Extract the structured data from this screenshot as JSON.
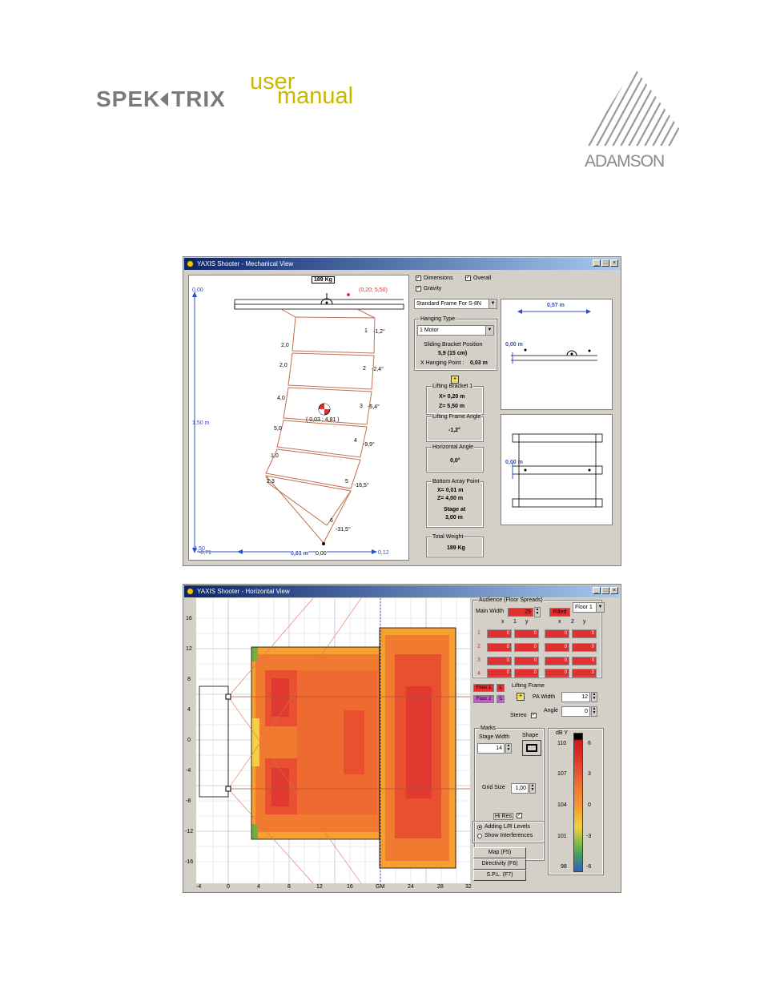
{
  "brand": {
    "word_left": "SPEK",
    "word_right": "TRIX",
    "user": "user",
    "manual": "manual",
    "company": "ADAMSON"
  },
  "mech": {
    "title": "YAXIS Shooter - Mechanical View",
    "weight_box": "189 Kg",
    "red_coord": "(0,20; 5,50)",
    "y_top": "0,00",
    "y_mid": "1,50 m",
    "y_bot": "-1,50",
    "x_left": "-0,71",
    "x_mid": "0,83 m",
    "x_right": "0,12",
    "x_zero": "0,00",
    "cog": "( 0,03 ; 4,81 )",
    "gaps": [
      "2,0",
      "2,0",
      "4,0",
      "5,0",
      "1,0",
      "2,3"
    ],
    "box_nums": [
      "1",
      "2",
      "3",
      "4",
      "5",
      "6"
    ],
    "box_angles": [
      "-1,2°",
      "-2,4°",
      "-5,4°",
      "-9,9°",
      "-16,5°",
      "-31,5°"
    ],
    "chk_dimensions": "Dimensions",
    "chk_overall": "Overall",
    "chk_gravity": "Gravity",
    "frame_select": "Standard Frame For S-8N",
    "hanging_type_title": "Hanging Type",
    "hanging_select": "1 Motor",
    "sliding_title": "Sliding Bracket Position",
    "sliding_value": "5,9  (15 cm)",
    "xhang_label": "X Hanging Point :",
    "xhang_value": "0,03 m",
    "lift_bracket_title": "Lifting Bracket 1",
    "lift_x": "X= 0,20 m",
    "lift_z": "Z= 5,50 m",
    "lift_angle_title": "Lifting Frame Angle",
    "lift_angle": "-1,2°",
    "horiz_angle_title": "Horizontal Angle",
    "horiz_angle": "0,0°",
    "bottom_title": "Bottom Array Point",
    "bottom_x": "X= 0,01 m",
    "bottom_z": "Z= 4,00 m",
    "stage_at": "Stage at",
    "stage_val": "3,00 m",
    "total_weight_title": "Total Weight",
    "total_weight": "189 Kg",
    "top_view_dim": "0,57 m",
    "top_view_left": "0,00 m",
    "plan_view_left": "0,00 m"
  },
  "horiz": {
    "title": "YAXIS Shooter - Horizontal View",
    "y_ticks": [
      "16",
      "12",
      "8",
      "4",
      "0",
      "-4",
      "-8",
      "-12",
      "-16"
    ],
    "x_ticks": [
      "-4",
      "0",
      "4",
      "8",
      "12",
      "16",
      "GM",
      "24",
      "28",
      "32"
    ],
    "audience_title": "Audience (Floor Spreads)",
    "main_width_label": "Main Width",
    "main_width_value": "25",
    "filled_btn": "Filled",
    "floor_select": "Floor 1",
    "col_heads": [
      "x",
      "1",
      "y",
      "x",
      "2",
      "y"
    ],
    "row_nums": [
      "1",
      "2",
      "3",
      "4"
    ],
    "cells": [
      [
        "0",
        "0",
        "0",
        "0"
      ],
      [
        "0",
        "0",
        "0",
        "0"
      ],
      [
        "0",
        "0",
        "0",
        "0"
      ],
      [
        "0",
        "0",
        "0",
        "0"
      ]
    ],
    "floor1": "Floor 1",
    "floor2": "Floor 2",
    "lr_l": "L",
    "lr_s": "S",
    "lifting_frame": "Lifting Frame",
    "pa_width_label": "PA Width",
    "pa_width": "12",
    "stereo": "Stereo",
    "angle_label": "Angle",
    "angle_value": "0",
    "marks_title": "Marks",
    "stage_width_label": "Stage Width",
    "stage_width": "14",
    "shape_label": "Shape",
    "grid_size_label": "Grid Size",
    "grid_size": "1,00",
    "hires": "Hi Res",
    "radio1": "Adding L/R Levels",
    "radio2": "Show Interferences",
    "btn_map": "Map (F5)",
    "btn_dir": "Directivity (F6)",
    "btn_spl": "S.P.L. (F7)",
    "db_title": "dB Y",
    "db_left": [
      "110",
      "107",
      "104",
      "101",
      "98"
    ],
    "db_right": [
      "6",
      "3",
      "0",
      "-3",
      "-6"
    ]
  }
}
